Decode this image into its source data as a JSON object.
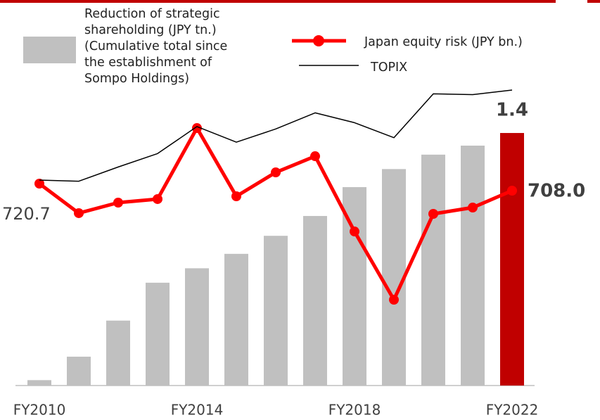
{
  "chart_data": {
    "type": "bar-line",
    "categories": [
      "FY2010",
      null,
      null,
      null,
      "FY2014",
      null,
      null,
      null,
      "FY2018",
      null,
      null,
      null,
      "FY2022"
    ],
    "series": [
      {
        "name": "Reduction of strategic\nshareholding (JPY tn.)\n(Cumulative total since\nthe establishment of\nSompo Holdings)",
        "type": "bar",
        "color": "#c0c0c0",
        "highlight_color": "#c00000",
        "values": [
          0.03,
          0.16,
          0.36,
          0.57,
          0.65,
          0.73,
          0.83,
          0.94,
          1.1,
          1.2,
          1.28,
          1.33,
          1.4
        ],
        "value_labels": [
          null,
          null,
          null,
          null,
          null,
          null,
          null,
          null,
          null,
          null,
          null,
          null,
          "1.4"
        ]
      },
      {
        "name": "Japan equity risk (JPY bn.)",
        "type": "line",
        "color": "#ff0000",
        "markers": true,
        "values": [
          720.7,
          667.4,
          686.4,
          692.8,
          821.0,
          697.8,
          741.0,
          770.2,
          634.3,
          511.1,
          666.1,
          677.5,
          708.0
        ],
        "value_labels": [
          "720.7",
          null,
          null,
          null,
          null,
          null,
          null,
          null,
          null,
          null,
          null,
          null,
          "708.0"
        ]
      },
      {
        "name": "TOPIX",
        "type": "line",
        "color": "#000000",
        "markers": false,
        "values": [
          869,
          855,
          1034,
          1203,
          1543,
          1347,
          1513,
          1716,
          1592,
          1403,
          1955,
          1946,
          2003
        ]
      }
    ]
  }
}
